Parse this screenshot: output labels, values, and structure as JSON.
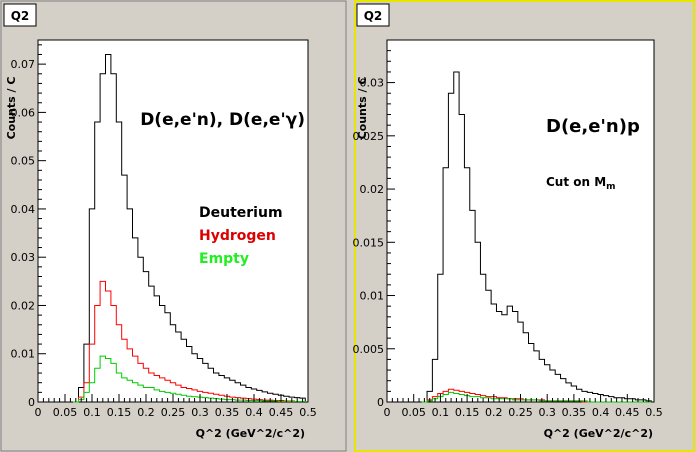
{
  "chart_data": [
    {
      "type": "line",
      "panel_label": "Q2",
      "xlabel": "Q^2 (GeV^2/c^2)",
      "ylabel": "Counts / C",
      "xlim": [
        0,
        0.5
      ],
      "ylim": [
        0,
        0.075
      ],
      "x_ticks": [
        "0",
        "0.05",
        "0.1",
        "0.15",
        "0.2",
        "0.25",
        "0.3",
        "0.35",
        "0.4",
        "0.45",
        "0.5"
      ],
      "y_ticks": [
        "0",
        "0.01",
        "0.02",
        "0.03",
        "0.04",
        "0.05",
        "0.06",
        "0.07"
      ],
      "title": "D(e,e'n), D(e,e'γ)",
      "grid": false,
      "legend": [
        "Deuterium",
        "Hydrogen",
        "Empty"
      ],
      "x": [
        0.07,
        0.08,
        0.09,
        0.1,
        0.11,
        0.12,
        0.13,
        0.14,
        0.15,
        0.16,
        0.17,
        0.18,
        0.19,
        0.2,
        0.21,
        0.22,
        0.23,
        0.24,
        0.25,
        0.26,
        0.27,
        0.28,
        0.29,
        0.3,
        0.31,
        0.32,
        0.33,
        0.34,
        0.35,
        0.36,
        0.37,
        0.38,
        0.39,
        0.4,
        0.41,
        0.42,
        0.43,
        0.44,
        0.45,
        0.46,
        0.47,
        0.48,
        0.49
      ],
      "series": [
        {
          "name": "Deuterium",
          "color": "#000000",
          "values": [
            0.0,
            0.003,
            0.012,
            0.04,
            0.058,
            0.068,
            0.072,
            0.068,
            0.058,
            0.047,
            0.04,
            0.034,
            0.03,
            0.027,
            0.024,
            0.022,
            0.02,
            0.0185,
            0.016,
            0.0145,
            0.013,
            0.0115,
            0.01,
            0.009,
            0.008,
            0.007,
            0.006,
            0.0055,
            0.005,
            0.0045,
            0.004,
            0.0035,
            0.003,
            0.0027,
            0.0024,
            0.0021,
            0.0018,
            0.0016,
            0.0014,
            0.0012,
            0.001,
            0.0009,
            0.0008
          ]
        },
        {
          "name": "Hydrogen",
          "color": "#ff0000",
          "values": [
            0.0,
            0.001,
            0.004,
            0.012,
            0.02,
            0.025,
            0.023,
            0.02,
            0.016,
            0.013,
            0.011,
            0.0095,
            0.008,
            0.007,
            0.006,
            0.0055,
            0.005,
            0.0045,
            0.004,
            0.0035,
            0.003,
            0.0028,
            0.0025,
            0.0022,
            0.002,
            0.0018,
            0.0016,
            0.0014,
            0.0012,
            0.001,
            0.0009,
            0.0008,
            0.0007,
            0.0006,
            0.0005,
            0.0004,
            0.0004,
            0.0003,
            0.0003,
            0.0002,
            0.0002,
            0.0001,
            0.0001
          ]
        },
        {
          "name": "Empty",
          "color": "#00cc00",
          "values": [
            0.0,
            0.0005,
            0.002,
            0.004,
            0.007,
            0.0095,
            0.009,
            0.008,
            0.006,
            0.005,
            0.0045,
            0.004,
            0.0035,
            0.003,
            0.003,
            0.0025,
            0.0022,
            0.002,
            0.0018,
            0.0016,
            0.0014,
            0.0012,
            0.0011,
            0.001,
            0.0009,
            0.0008,
            0.0007,
            0.0006,
            0.0005,
            0.0005,
            0.0004,
            0.0004,
            0.0003,
            0.0003,
            0.0003,
            0.0002,
            0.0002,
            0.0002,
            0.0001,
            0.0001,
            0.0001,
            0.0001,
            0.0001
          ]
        }
      ]
    },
    {
      "type": "line",
      "panel_label": "Q2",
      "xlabel": "Q^2 (GeV^2/c^2)",
      "ylabel": "Counts / C",
      "xlim": [
        0,
        0.5
      ],
      "ylim": [
        0,
        0.034
      ],
      "x_ticks": [
        "0",
        "0.05",
        "0.1",
        "0.15",
        "0.2",
        "0.25",
        "0.3",
        "0.35",
        "0.4",
        "0.45",
        "0.5"
      ],
      "y_ticks": [
        "0",
        "0.005",
        "0.01",
        "0.015",
        "0.02",
        "0.025",
        "0.03"
      ],
      "title": "D(e,e'n)p",
      "annotation": "Cut on M",
      "annotation_sub": "m",
      "grid": false,
      "x": [
        0.07,
        0.08,
        0.09,
        0.1,
        0.11,
        0.12,
        0.13,
        0.14,
        0.15,
        0.16,
        0.17,
        0.18,
        0.19,
        0.2,
        0.21,
        0.22,
        0.23,
        0.24,
        0.25,
        0.26,
        0.27,
        0.28,
        0.29,
        0.3,
        0.31,
        0.32,
        0.33,
        0.34,
        0.35,
        0.36,
        0.37,
        0.38,
        0.39,
        0.4,
        0.41,
        0.42,
        0.43,
        0.44,
        0.45,
        0.46,
        0.47,
        0.48,
        0.49
      ],
      "series": [
        {
          "color": "#000000",
          "values": [
            0.0,
            0.001,
            0.004,
            0.012,
            0.022,
            0.029,
            0.031,
            0.027,
            0.022,
            0.018,
            0.015,
            0.012,
            0.0105,
            0.0092,
            0.0085,
            0.0082,
            0.009,
            0.0085,
            0.0075,
            0.0065,
            0.0055,
            0.0048,
            0.004,
            0.0035,
            0.003,
            0.0026,
            0.0022,
            0.0018,
            0.0015,
            0.0012,
            0.001,
            0.0009,
            0.0008,
            0.0007,
            0.0006,
            0.0005,
            0.0004,
            0.0004,
            0.0003,
            0.0003,
            0.0002,
            0.0002,
            0.0001
          ]
        },
        {
          "color": "#ff0000",
          "values": [
            0.0,
            0.0002,
            0.0005,
            0.0008,
            0.001,
            0.0012,
            0.0011,
            0.001,
            0.0009,
            0.0008,
            0.0007,
            0.0006,
            0.0005,
            0.0005,
            0.0004,
            0.0004,
            0.0003,
            0.0003,
            0.0003,
            0.0002,
            0.0002,
            0.0002,
            0.0002,
            0.0001,
            0.0001,
            0.0001,
            0.0001,
            0.0001,
            0.0001,
            0.0001,
            0.0,
            0.0,
            0.0,
            0.0,
            0.0,
            0.0,
            0.0,
            0.0,
            0.0,
            0.0,
            0.0,
            0.0,
            0.0
          ]
        },
        {
          "color": "#00cc00",
          "values": [
            0.0,
            0.0001,
            0.0003,
            0.0005,
            0.0007,
            0.0009,
            0.0008,
            0.0007,
            0.0006,
            0.0005,
            0.0005,
            0.0004,
            0.0004,
            0.0003,
            0.0003,
            0.0003,
            0.0003,
            0.0002,
            0.0002,
            0.0002,
            0.0002,
            0.0002,
            0.0001,
            0.0001,
            0.0001,
            0.0001,
            0.0001,
            0.0001,
            0.0001,
            0.0001,
            0.0001,
            0.0,
            0.0,
            0.0,
            0.0,
            0.0,
            0.0,
            0.0,
            0.0,
            0.0,
            0.0,
            0.0,
            0.0
          ]
        }
      ]
    }
  ]
}
